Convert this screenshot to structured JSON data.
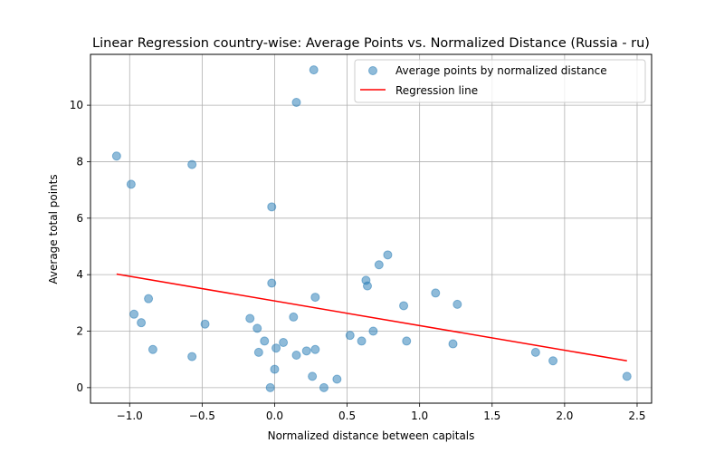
{
  "chart_data": {
    "type": "scatter",
    "title": "Linear Regression country-wise: Average Points vs. Normalized Distance (Russia - ru)",
    "xlabel": "Normalized distance between capitals",
    "ylabel": "Average total points",
    "xlim": [
      -1.27,
      2.6
    ],
    "ylim": [
      -0.55,
      11.8
    ],
    "xticks": [
      -1.0,
      -0.5,
      0.0,
      0.5,
      1.0,
      1.5,
      2.0,
      2.5
    ],
    "xtick_labels": [
      "−1.0",
      "−0.5",
      "0.0",
      "0.5",
      "1.0",
      "1.5",
      "2.0",
      "2.5"
    ],
    "yticks": [
      0,
      2,
      4,
      6,
      8,
      10
    ],
    "ytick_labels": [
      "0",
      "2",
      "4",
      "6",
      "8",
      "10"
    ],
    "grid": true,
    "legend_position": "top-right",
    "series": [
      {
        "name": "Average points by normalized distance",
        "kind": "scatter",
        "color": "#1f77b4",
        "points": [
          [
            -1.09,
            8.2
          ],
          [
            -0.99,
            7.2
          ],
          [
            -0.97,
            2.6
          ],
          [
            -0.92,
            2.3
          ],
          [
            -0.87,
            3.15
          ],
          [
            -0.84,
            1.35
          ],
          [
            -0.57,
            7.9
          ],
          [
            -0.57,
            1.1
          ],
          [
            -0.48,
            2.25
          ],
          [
            -0.17,
            2.45
          ],
          [
            -0.12,
            2.1
          ],
          [
            -0.11,
            1.25
          ],
          [
            -0.07,
            1.65
          ],
          [
            -0.03,
            0.0
          ],
          [
            -0.02,
            6.4
          ],
          [
            -0.02,
            3.7
          ],
          [
            0.0,
            0.65
          ],
          [
            0.01,
            1.4
          ],
          [
            0.06,
            1.6
          ],
          [
            0.13,
            2.5
          ],
          [
            0.15,
            1.15
          ],
          [
            0.15,
            10.1
          ],
          [
            0.22,
            1.3
          ],
          [
            0.26,
            0.4
          ],
          [
            0.27,
            11.25
          ],
          [
            0.28,
            1.35
          ],
          [
            0.28,
            3.2
          ],
          [
            0.34,
            0.0
          ],
          [
            0.43,
            0.3
          ],
          [
            0.52,
            1.85
          ],
          [
            0.6,
            1.65
          ],
          [
            0.63,
            3.8
          ],
          [
            0.64,
            3.6
          ],
          [
            0.68,
            2.0
          ],
          [
            0.72,
            4.35
          ],
          [
            0.78,
            4.7
          ],
          [
            0.89,
            2.9
          ],
          [
            0.91,
            1.65
          ],
          [
            1.11,
            3.35
          ],
          [
            1.23,
            1.55
          ],
          [
            1.26,
            2.95
          ],
          [
            1.8,
            1.25
          ],
          [
            1.92,
            0.95
          ],
          [
            2.43,
            0.4
          ]
        ]
      },
      {
        "name": "Regression line",
        "kind": "line",
        "color": "#ff0000",
        "points": [
          [
            -1.09,
            4.02
          ],
          [
            2.43,
            0.95
          ]
        ]
      }
    ]
  }
}
